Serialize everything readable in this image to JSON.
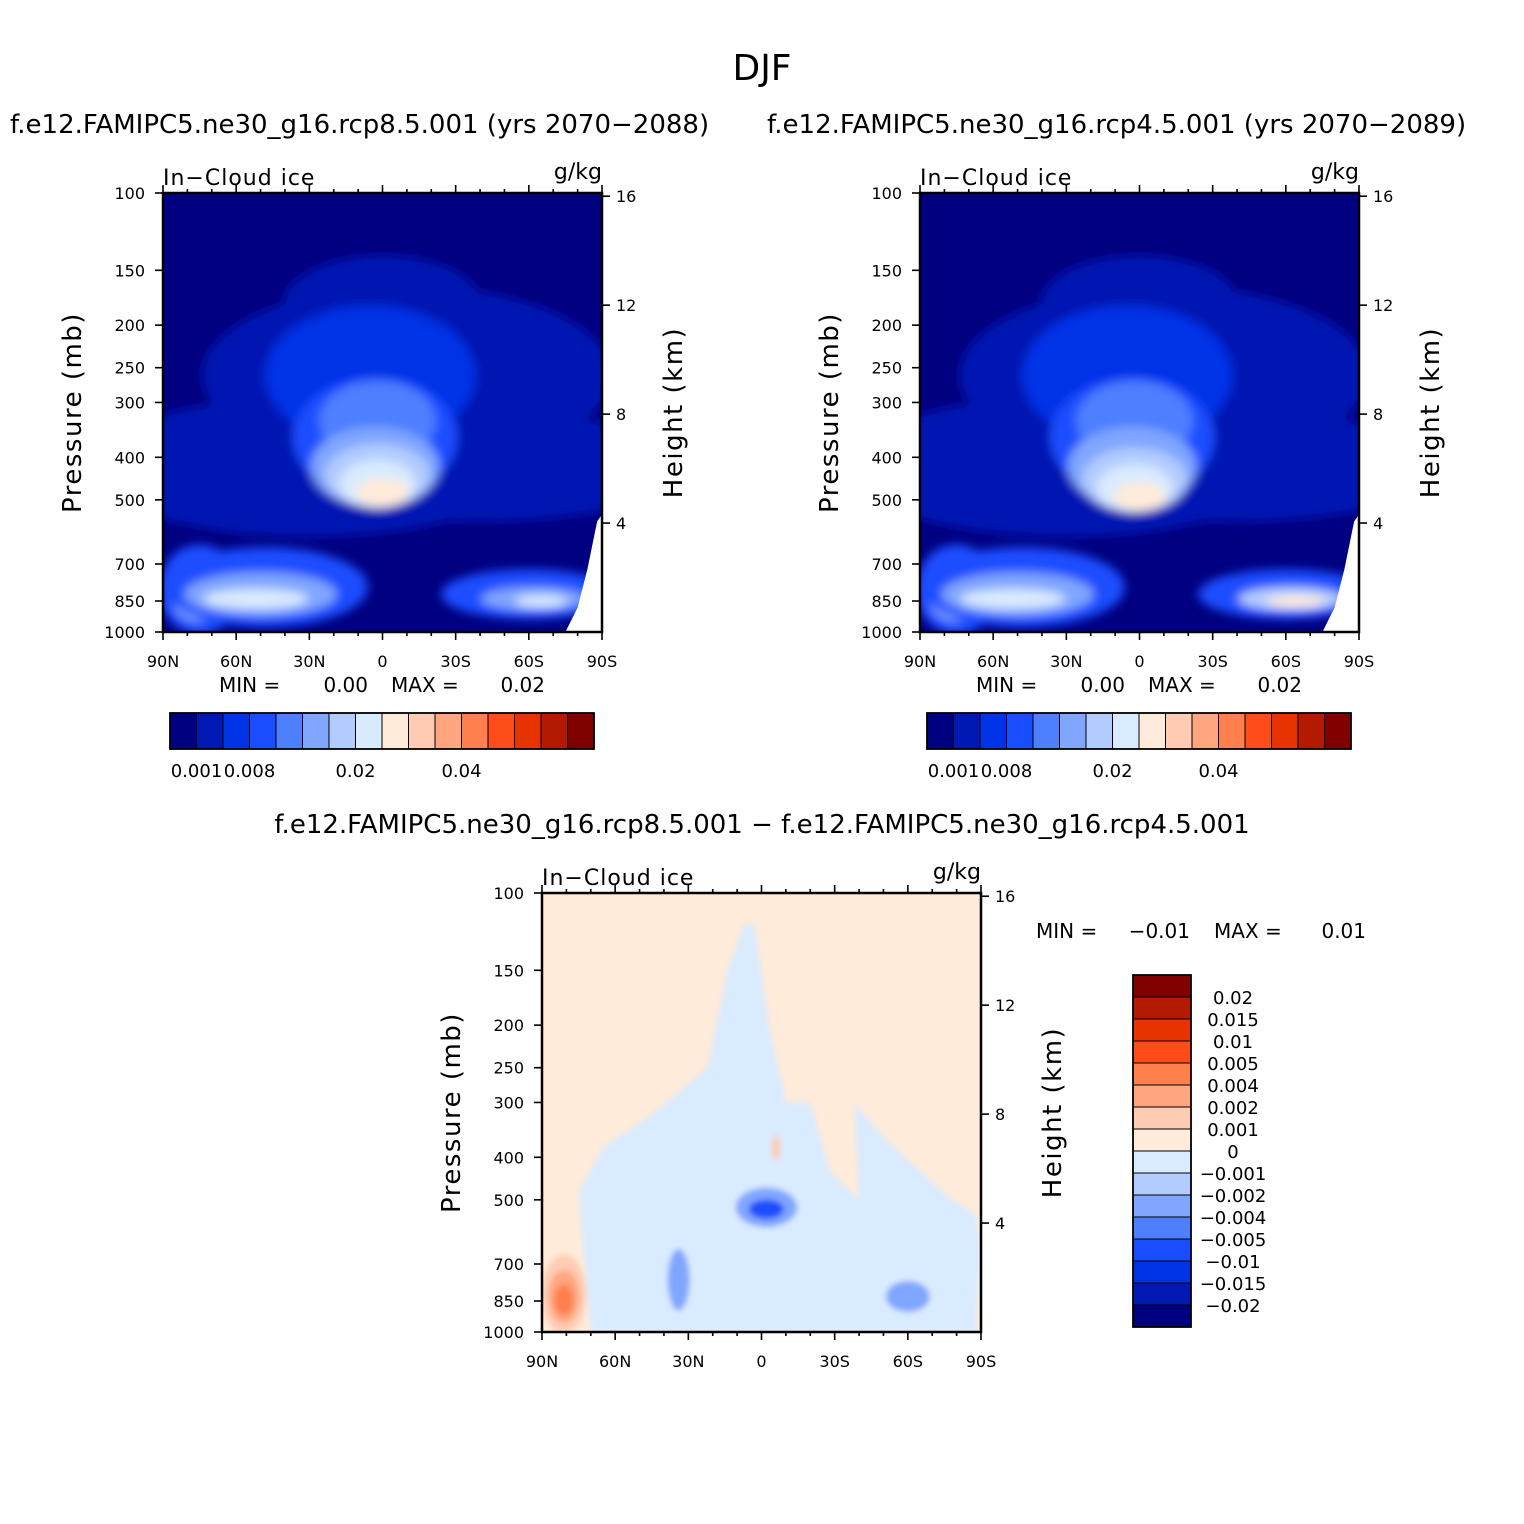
{
  "figure": {
    "title": "DJF",
    "diff_title": "f.e12.FAMIPC5.ne30_g16.rcp8.5.001 − f.e12.FAMIPC5.ne30_g16.rcp4.5.001"
  },
  "chart_data": [
    {
      "type": "heatmap",
      "title": "f.e12.FAMIPC5.ne30_g16.rcp8.5.001 (yrs 2070−2088)",
      "left_label": "In−Cloud ice",
      "right_label": "g/kg",
      "xlabel": "",
      "ylabel": "Pressure (mb)",
      "y2label": "Height (km)",
      "x_ticklabels": [
        "90N",
        "60N",
        "30N",
        "0",
        "30S",
        "60S",
        "90S"
      ],
      "x_ticks": [
        90,
        60,
        30,
        0,
        -30,
        -60,
        -90
      ],
      "y_ticks": [
        100,
        150,
        200,
        250,
        300,
        400,
        500,
        700,
        850,
        1000
      ],
      "y2_ticks": [
        16,
        12,
        8,
        4
      ],
      "stats": {
        "min_label": "MIN =",
        "min": "0.00",
        "max_label": "MAX =",
        "max": "0.02"
      },
      "colorbar_labels": [
        "0.001",
        "0.008",
        "0.02",
        "0.04"
      ],
      "features": [
        {
          "lat": 0,
          "p": 470,
          "value": 0.02
        },
        {
          "lat": 78,
          "p": 860,
          "value": 0.012
        },
        {
          "lat": 55,
          "p": 840,
          "value": 0.015
        },
        {
          "lat": -60,
          "p": 840,
          "value": 0.012
        }
      ]
    },
    {
      "type": "heatmap",
      "title": "f.e12.FAMIPC5.ne30_g16.rcp4.5.001 (yrs 2070−2089)",
      "left_label": "In−Cloud ice",
      "right_label": "g/kg",
      "xlabel": "",
      "ylabel": "Pressure (mb)",
      "y2label": "Height (km)",
      "x_ticklabels": [
        "90N",
        "60N",
        "30N",
        "0",
        "30S",
        "60S",
        "90S"
      ],
      "x_ticks": [
        90,
        60,
        30,
        0,
        -30,
        -60,
        -90
      ],
      "y_ticks": [
        100,
        150,
        200,
        250,
        300,
        400,
        500,
        700,
        850,
        1000
      ],
      "y2_ticks": [
        16,
        12,
        8,
        4
      ],
      "stats": {
        "min_label": "MIN =",
        "min": "0.00",
        "max_label": "MAX =",
        "max": "0.02"
      },
      "colorbar_labels": [
        "0.001",
        "0.008",
        "0.02",
        "0.04"
      ],
      "features": [
        {
          "lat": 0,
          "p": 480,
          "value": 0.02
        },
        {
          "lat": 78,
          "p": 860,
          "value": 0.01
        },
        {
          "lat": 55,
          "p": 830,
          "value": 0.015
        },
        {
          "lat": -60,
          "p": 840,
          "value": 0.015
        }
      ]
    },
    {
      "type": "heatmap",
      "title": "f.e12.FAMIPC5.ne30_g16.rcp8.5.001 − f.e12.FAMIPC5.ne30_g16.rcp4.5.001",
      "left_label": "In−Cloud ice",
      "right_label": "g/kg",
      "xlabel": "",
      "ylabel": "Pressure (mb)",
      "y2label": "Height (km)",
      "x_ticklabels": [
        "90N",
        "60N",
        "30N",
        "0",
        "30S",
        "60S",
        "90S"
      ],
      "x_ticks": [
        90,
        60,
        30,
        0,
        -30,
        -60,
        -90
      ],
      "y_ticks": [
        100,
        150,
        200,
        250,
        300,
        400,
        500,
        700,
        850,
        1000
      ],
      "y2_ticks": [
        16,
        12,
        8,
        4
      ],
      "stats": {
        "min_label": "MIN =",
        "min": "−0.01",
        "max_label": "MAX =",
        "max": "0.01"
      },
      "colorbar_labels": [
        "0.02",
        "0.015",
        "0.01",
        "0.005",
        "0.004",
        "0.002",
        "0.001",
        "0",
        "−0.001",
        "−0.002",
        "−0.004",
        "−0.005",
        "−0.01",
        "−0.015",
        "−0.02"
      ],
      "features": [
        {
          "lat": 80,
          "p": 840,
          "value": 0.01
        },
        {
          "lat": 0,
          "p": 520,
          "value": -0.01
        },
        {
          "lat": 35,
          "p": 760,
          "value": -0.004
        },
        {
          "lat": -60,
          "p": 830,
          "value": -0.004
        }
      ]
    }
  ],
  "colors": {
    "top_scale": [
      "#000080",
      "#0019b2",
      "#0033e6",
      "#1a4dff",
      "#4d7fff",
      "#80a6ff",
      "#b3ccff",
      "#d9ebff",
      "#ffebd9",
      "#ffccb3",
      "#ffa680",
      "#ff7f4d",
      "#ff4d1a",
      "#e63300",
      "#b31a00",
      "#800000"
    ],
    "diff_scale": [
      "#000080",
      "#0019b2",
      "#0033e6",
      "#1a4dff",
      "#4d7fff",
      "#80a6ff",
      "#b3ccff",
      "#d9ebff",
      "#ffebd9",
      "#ffccb3",
      "#ffa680",
      "#ff7f4d",
      "#ff4d1a",
      "#e63300",
      "#b31a00",
      "#800000"
    ]
  }
}
